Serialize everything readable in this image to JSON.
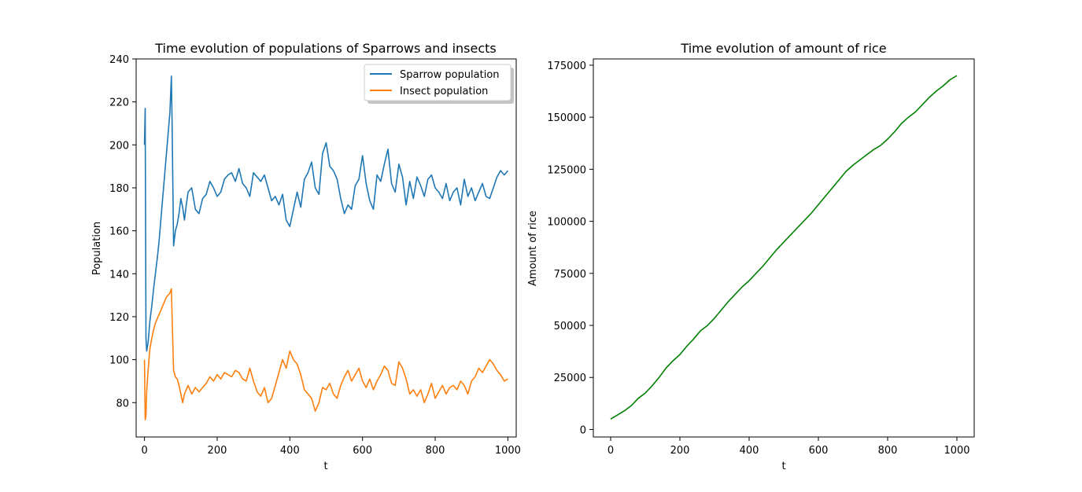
{
  "chart_data": [
    {
      "type": "line",
      "title": "Time evolution of populations of Sparrows and insects",
      "xlabel": "t",
      "ylabel": "Population",
      "xlim": [
        -23,
        1023
      ],
      "ylim": [
        64,
        240
      ],
      "xticks": [
        0,
        200,
        400,
        600,
        800,
        1000
      ],
      "yticks": [
        80,
        100,
        120,
        140,
        160,
        180,
        200,
        220,
        240
      ],
      "legend": "top-right",
      "series": [
        {
          "name": "Sparrow population",
          "color": "#1f77b4",
          "x": [
            0,
            2,
            4,
            6,
            10,
            15,
            20,
            25,
            30,
            35,
            40,
            45,
            50,
            55,
            60,
            65,
            70,
            74,
            76,
            80,
            85,
            90,
            95,
            100,
            105,
            110,
            115,
            120,
            130,
            140,
            150,
            160,
            170,
            180,
            190,
            200,
            210,
            220,
            230,
            240,
            250,
            260,
            270,
            280,
            290,
            300,
            310,
            320,
            330,
            340,
            350,
            360,
            370,
            380,
            390,
            400,
            410,
            420,
            430,
            440,
            450,
            460,
            470,
            480,
            490,
            500,
            510,
            520,
            530,
            540,
            550,
            560,
            570,
            580,
            590,
            600,
            610,
            620,
            630,
            640,
            650,
            660,
            670,
            680,
            690,
            700,
            710,
            720,
            730,
            740,
            750,
            760,
            770,
            780,
            790,
            800,
            810,
            820,
            830,
            840,
            850,
            860,
            870,
            880,
            890,
            900,
            910,
            920,
            930,
            940,
            950,
            960,
            970,
            980,
            990,
            1000
          ],
          "values": [
            200,
            217,
            110,
            104,
            108,
            118,
            125,
            133,
            140,
            147,
            155,
            165,
            175,
            185,
            195,
            205,
            215,
            232,
            210,
            153,
            160,
            163,
            168,
            175,
            171,
            165,
            172,
            178,
            180,
            170,
            168,
            175,
            177,
            183,
            180,
            176,
            178,
            184,
            186,
            187,
            183,
            189,
            182,
            180,
            176,
            187,
            185,
            183,
            186,
            180,
            174,
            176,
            172,
            177,
            165,
            162,
            170,
            178,
            171,
            184,
            187,
            192,
            180,
            177,
            196,
            201,
            190,
            188,
            184,
            175,
            168,
            172,
            170,
            181,
            184,
            195,
            182,
            174,
            170,
            186,
            183,
            191,
            198,
            182,
            178,
            191,
            185,
            172,
            183,
            175,
            185,
            181,
            176,
            184,
            186,
            180,
            178,
            175,
            182,
            174,
            178,
            180,
            172,
            184,
            176,
            180,
            174,
            178,
            182,
            176,
            175,
            180,
            185,
            188,
            186,
            188
          ]
        },
        {
          "name": "Insect population",
          "color": "#ff7f0e",
          "x": [
            0,
            2,
            4,
            6,
            10,
            15,
            20,
            25,
            30,
            35,
            40,
            45,
            50,
            55,
            60,
            65,
            70,
            74,
            76,
            80,
            85,
            90,
            95,
            100,
            105,
            110,
            115,
            120,
            130,
            140,
            150,
            160,
            170,
            180,
            190,
            200,
            210,
            220,
            230,
            240,
            250,
            260,
            270,
            280,
            290,
            300,
            310,
            320,
            330,
            340,
            350,
            360,
            370,
            380,
            390,
            400,
            410,
            420,
            430,
            440,
            450,
            460,
            470,
            480,
            490,
            500,
            510,
            520,
            530,
            540,
            550,
            560,
            570,
            580,
            590,
            600,
            610,
            620,
            630,
            640,
            650,
            660,
            670,
            680,
            690,
            700,
            710,
            720,
            730,
            740,
            750,
            760,
            770,
            780,
            790,
            800,
            810,
            820,
            830,
            840,
            850,
            860,
            870,
            880,
            890,
            900,
            910,
            920,
            930,
            940,
            950,
            960,
            970,
            980,
            990,
            1000
          ],
          "values": [
            100,
            72,
            74,
            85,
            95,
            105,
            110,
            114,
            117,
            119,
            121,
            123,
            125,
            127,
            129,
            130,
            131,
            133,
            120,
            95,
            92,
            91,
            88,
            84,
            80,
            84,
            86,
            88,
            84,
            87,
            85,
            87,
            89,
            92,
            90,
            93,
            91,
            94,
            93,
            92,
            95,
            94,
            91,
            90,
            96,
            90,
            85,
            83,
            87,
            80,
            82,
            88,
            94,
            100,
            96,
            104,
            100,
            98,
            93,
            86,
            84,
            82,
            76,
            80,
            87,
            86,
            89,
            84,
            82,
            88,
            92,
            95,
            90,
            93,
            96,
            90,
            87,
            91,
            86,
            90,
            93,
            97,
            95,
            89,
            88,
            99,
            96,
            91,
            84,
            86,
            83,
            86,
            80,
            84,
            89,
            82,
            85,
            88,
            84,
            87,
            88,
            86,
            90,
            88,
            84,
            90,
            92,
            96,
            94,
            97,
            100,
            98,
            95,
            93,
            90,
            91
          ]
        }
      ]
    },
    {
      "type": "line",
      "title": "Time evolution of amount of rice",
      "xlabel": "t",
      "ylabel": "Amount of rice",
      "xlim": [
        -50,
        1050
      ],
      "ylim": [
        -3600,
        178000
      ],
      "xticks": [
        0,
        200,
        400,
        600,
        800,
        1000
      ],
      "yticks": [
        0,
        25000,
        50000,
        75000,
        100000,
        125000,
        150000,
        175000
      ],
      "series": [
        {
          "color": "#008000",
          "x": [
            0,
            20,
            40,
            60,
            80,
            100,
            120,
            140,
            160,
            180,
            200,
            220,
            240,
            260,
            280,
            300,
            320,
            340,
            360,
            380,
            400,
            420,
            440,
            460,
            480,
            500,
            520,
            540,
            560,
            580,
            600,
            620,
            640,
            660,
            680,
            700,
            720,
            740,
            760,
            780,
            800,
            820,
            840,
            860,
            880,
            900,
            920,
            940,
            960,
            980,
            1000
          ],
          "values": [
            5000,
            7000,
            9000,
            11500,
            15000,
            17500,
            21000,
            25000,
            29500,
            33000,
            36000,
            40000,
            43500,
            47500,
            50000,
            53500,
            57500,
            61500,
            65000,
            68500,
            71500,
            75000,
            78500,
            82500,
            86500,
            90000,
            93500,
            97000,
            100500,
            104000,
            108000,
            112000,
            116000,
            120000,
            124000,
            127000,
            129500,
            132000,
            134500,
            136500,
            139500,
            143000,
            147000,
            150000,
            152500,
            156000,
            159500,
            162500,
            165000,
            168000,
            170000
          ]
        }
      ]
    }
  ]
}
